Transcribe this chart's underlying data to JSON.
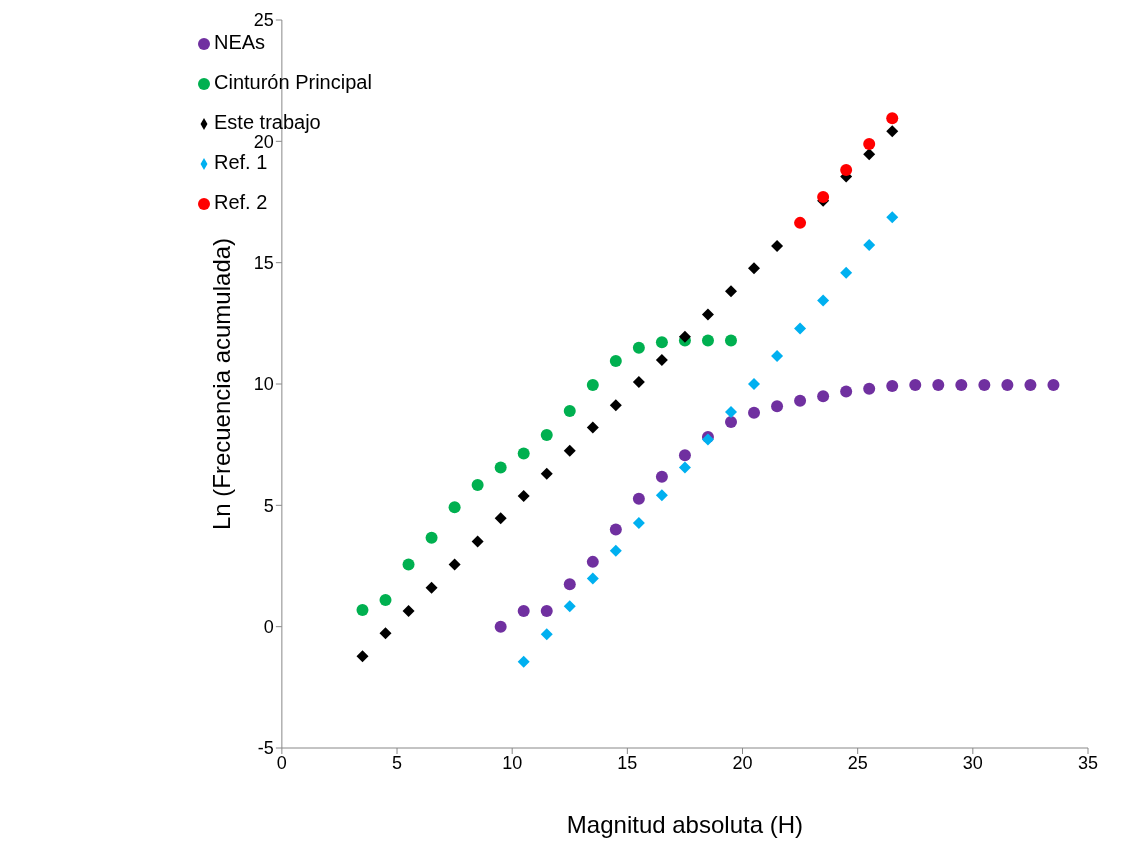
{
  "chart_data": {
    "type": "scatter",
    "xlabel": "Magnitud absoluta (H)",
    "ylabel": "Ln (Frecuencia acumulada)",
    "xlim": [
      0,
      35
    ],
    "xticks": [
      0,
      5,
      10,
      15,
      20,
      25,
      30,
      35
    ],
    "ylim": [
      -5,
      25
    ],
    "yticks": [
      -5,
      0,
      5,
      10,
      15,
      20,
      25
    ],
    "grid": false,
    "legend": "top left",
    "series": [
      {
        "name": "NEAs",
        "color": "#7030a0",
        "marker": "circle",
        "x": [
          9.5,
          10.5,
          11.5,
          12.5,
          13.5,
          14.5,
          15.5,
          16.5,
          17.5,
          18.5,
          19.5,
          20.5,
          21.5,
          22.5,
          23.5,
          24.5,
          25.5,
          26.5,
          27.5,
          28.5,
          29.5,
          30.5,
          31.5,
          32.5,
          33.5
        ],
        "values": [
          0,
          0.65,
          0.65,
          1.75,
          2.67,
          4.0,
          5.27,
          6.18,
          7.06,
          7.82,
          8.43,
          8.82,
          9.08,
          9.31,
          9.5,
          9.69,
          9.8,
          9.92,
          9.96,
          9.96,
          9.96,
          9.96,
          9.96,
          9.96,
          9.96
        ]
      },
      {
        "name": "Cinturón Principal",
        "color": "#00b050",
        "marker": "circle",
        "x": [
          3.5,
          4.5,
          5.5,
          6.5,
          7.5,
          8.5,
          9.5,
          10.5,
          11.5,
          12.5,
          13.5,
          14.5,
          15.5,
          16.5,
          17.5,
          18.5,
          19.5
        ],
        "values": [
          0.69,
          1.1,
          2.56,
          3.66,
          4.92,
          5.84,
          6.56,
          7.14,
          7.9,
          8.89,
          9.96,
          10.95,
          11.49,
          11.72,
          11.79,
          11.79,
          11.79
        ]
      },
      {
        "name": "Este trabajo",
        "color": "#000000",
        "marker": "diamond",
        "x": [
          3.5,
          4.5,
          5.5,
          6.5,
          7.5,
          8.5,
          9.5,
          10.5,
          11.5,
          12.5,
          13.5,
          14.5,
          15.5,
          16.5,
          17.5,
          18.5,
          19.5,
          20.5,
          21.5,
          22.5,
          23.5,
          24.5,
          25.5,
          26.5
        ],
        "values": [
          -1.22,
          -0.27,
          0.65,
          1.6,
          2.56,
          3.51,
          4.47,
          5.38,
          6.3,
          7.25,
          8.21,
          9.12,
          10.08,
          10.99,
          11.95,
          12.86,
          13.82,
          14.77,
          15.69,
          null,
          17.55,
          18.55,
          19.47,
          20.42
        ]
      },
      {
        "name": "Ref. 1",
        "color": "#00b0f0",
        "marker": "diamond",
        "x": [
          10.5,
          11.5,
          12.5,
          13.5,
          14.5,
          15.5,
          16.5,
          17.5,
          18.5,
          19.5,
          20.5,
          21.5,
          22.5,
          23.5,
          24.5,
          25.5,
          26.5
        ],
        "values": [
          -1.45,
          -0.31,
          0.84,
          1.98,
          3.13,
          4.27,
          5.42,
          6.56,
          7.71,
          8.85,
          10.0,
          11.15,
          12.29,
          13.44,
          14.58,
          15.73,
          16.87
        ]
      },
      {
        "name": "Ref. 2",
        "color": "#ff0000",
        "marker": "circle",
        "x": [
          22.5,
          23.5,
          24.5,
          25.5,
          26.5
        ],
        "values": [
          16.64,
          17.71,
          18.82,
          19.89,
          20.95
        ]
      }
    ]
  }
}
